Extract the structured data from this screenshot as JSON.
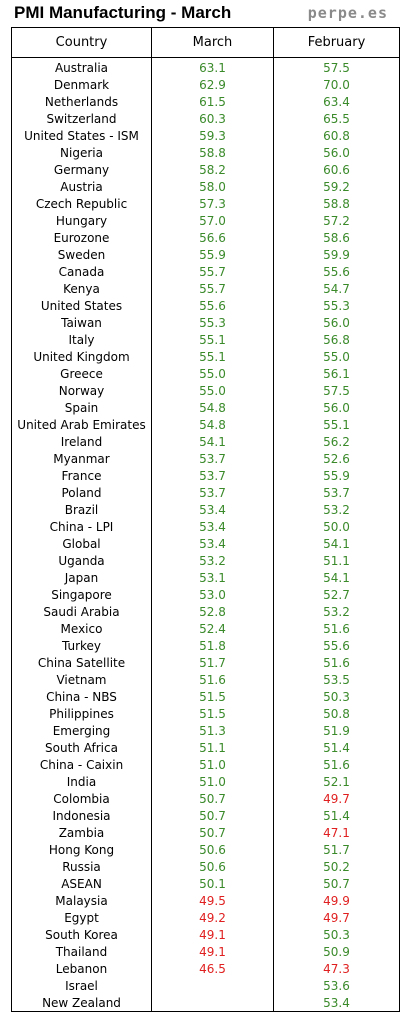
{
  "header": {
    "title": "PMI Manufacturing - March",
    "brand": "perpe.es"
  },
  "columns": [
    "Country",
    "March",
    "February"
  ],
  "colors": {
    "expansion": "#3a8a2a",
    "contraction": "#e02020"
  },
  "rows": [
    {
      "country": "Australia",
      "march": "63.1",
      "february": "57.5"
    },
    {
      "country": "Denmark",
      "march": "62.9",
      "february": "70.0"
    },
    {
      "country": "Netherlands",
      "march": "61.5",
      "february": "63.4"
    },
    {
      "country": "Switzerland",
      "march": "60.3",
      "february": "65.5"
    },
    {
      "country": "United States - ISM",
      "march": "59.3",
      "february": "60.8"
    },
    {
      "country": "Nigeria",
      "march": "58.8",
      "february": "56.0"
    },
    {
      "country": "Germany",
      "march": "58.2",
      "february": "60.6"
    },
    {
      "country": "Austria",
      "march": "58.0",
      "february": "59.2"
    },
    {
      "country": "Czech Republic",
      "march": "57.3",
      "february": "58.8"
    },
    {
      "country": "Hungary",
      "march": "57.0",
      "february": "57.2"
    },
    {
      "country": "Eurozone",
      "march": "56.6",
      "february": "58.6"
    },
    {
      "country": "Sweden",
      "march": "55.9",
      "february": "59.9"
    },
    {
      "country": "Canada",
      "march": "55.7",
      "february": "55.6"
    },
    {
      "country": "Kenya",
      "march": "55.7",
      "february": "54.7"
    },
    {
      "country": "United States",
      "march": "55.6",
      "february": "55.3"
    },
    {
      "country": "Taiwan",
      "march": "55.3",
      "february": "56.0"
    },
    {
      "country": "Italy",
      "march": "55.1",
      "february": "56.8"
    },
    {
      "country": "United Kingdom",
      "march": "55.1",
      "february": "55.0"
    },
    {
      "country": "Greece",
      "march": "55.0",
      "february": "56.1"
    },
    {
      "country": "Norway",
      "march": "55.0",
      "february": "57.5"
    },
    {
      "country": "Spain",
      "march": "54.8",
      "february": "56.0"
    },
    {
      "country": "United Arab Emirates",
      "march": "54.8",
      "february": "55.1"
    },
    {
      "country": "Ireland",
      "march": "54.1",
      "february": "56.2"
    },
    {
      "country": "Myanmar",
      "march": "53.7",
      "february": "52.6"
    },
    {
      "country": "France",
      "march": "53.7",
      "february": "55.9"
    },
    {
      "country": "Poland",
      "march": "53.7",
      "february": "53.7"
    },
    {
      "country": "Brazil",
      "march": "53.4",
      "february": "53.2"
    },
    {
      "country": "China - LPI",
      "march": "53.4",
      "february": "50.0"
    },
    {
      "country": "Global",
      "march": "53.4",
      "february": "54.1"
    },
    {
      "country": "Uganda",
      "march": "53.2",
      "february": "51.1"
    },
    {
      "country": "Japan",
      "march": "53.1",
      "february": "54.1"
    },
    {
      "country": "Singapore",
      "march": "53.0",
      "february": "52.7"
    },
    {
      "country": "Saudi Arabia",
      "march": "52.8",
      "february": "53.2"
    },
    {
      "country": "Mexico",
      "march": "52.4",
      "february": "51.6"
    },
    {
      "country": "Turkey",
      "march": "51.8",
      "february": "55.6"
    },
    {
      "country": "China Satellite",
      "march": "51.7",
      "february": "51.6"
    },
    {
      "country": "Vietnam",
      "march": "51.6",
      "february": "53.5"
    },
    {
      "country": "China - NBS",
      "march": "51.5",
      "february": "50.3"
    },
    {
      "country": "Philippines",
      "march": "51.5",
      "february": "50.8"
    },
    {
      "country": "Emerging",
      "march": "51.3",
      "february": "51.9"
    },
    {
      "country": "South Africa",
      "march": "51.1",
      "february": "51.4"
    },
    {
      "country": "China - Caixin",
      "march": "51.0",
      "february": "51.6"
    },
    {
      "country": "India",
      "march": "51.0",
      "february": "52.1"
    },
    {
      "country": "Colombia",
      "march": "50.7",
      "february": "49.7"
    },
    {
      "country": "Indonesia",
      "march": "50.7",
      "february": "51.4"
    },
    {
      "country": "Zambia",
      "march": "50.7",
      "february": "47.1"
    },
    {
      "country": "Hong Kong",
      "march": "50.6",
      "february": "51.7"
    },
    {
      "country": "Russia",
      "march": "50.6",
      "february": "50.2"
    },
    {
      "country": "ASEAN",
      "march": "50.1",
      "february": "50.7"
    },
    {
      "country": "Malaysia",
      "march": "49.5",
      "february": "49.9"
    },
    {
      "country": "Egypt",
      "march": "49.2",
      "february": "49.7"
    },
    {
      "country": "South Korea",
      "march": "49.1",
      "february": "50.3"
    },
    {
      "country": "Thailand",
      "march": "49.1",
      "february": "50.9"
    },
    {
      "country": "Lebanon",
      "march": "46.5",
      "february": "47.3"
    },
    {
      "country": "Israel",
      "march": "",
      "february": "53.6"
    },
    {
      "country": "New Zealand",
      "march": "",
      "february": "53.4"
    }
  ]
}
